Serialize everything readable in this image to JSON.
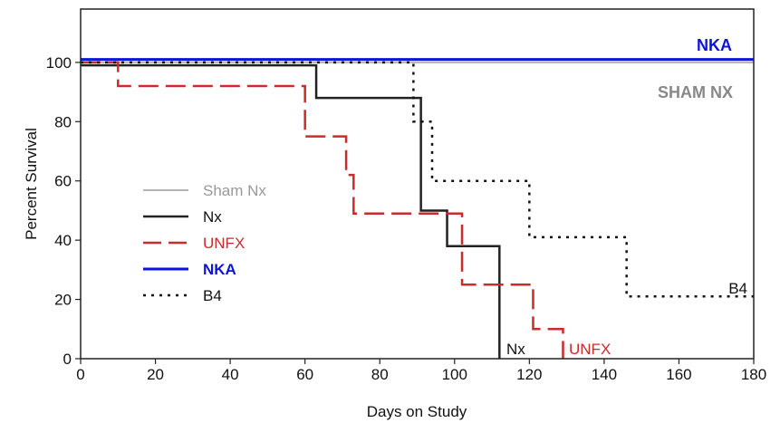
{
  "chart_data": {
    "type": "line",
    "subtype": "kaplan-meier step",
    "title": "",
    "xlabel": "Days on Study",
    "ylabel": "Percent Survival",
    "xlim": [
      0,
      180
    ],
    "ylim": [
      0,
      118
    ],
    "xticks": [
      0,
      20,
      40,
      60,
      80,
      100,
      120,
      140,
      160,
      180
    ],
    "yticks": [
      0,
      20,
      40,
      60,
      80,
      100
    ],
    "grid": false,
    "legend_position": "lower-left",
    "series": [
      {
        "name": "Sham Nx",
        "color": "#b3b3b3",
        "style": "solid",
        "width": 2,
        "x": [
          0,
          180
        ],
        "y": [
          100,
          100
        ]
      },
      {
        "name": "Nx",
        "color": "#222222",
        "style": "solid",
        "width": 2.5,
        "x": [
          0,
          63,
          91,
          98,
          112
        ],
        "y": [
          99,
          88,
          50,
          38,
          0
        ]
      },
      {
        "name": "UNFX",
        "color": "#cc2b2b",
        "style": "dashed",
        "width": 2.5,
        "x": [
          0,
          10,
          60,
          71,
          73,
          102,
          121,
          129
        ],
        "y": [
          100,
          92,
          75,
          62,
          49,
          25,
          10,
          0
        ]
      },
      {
        "name": "NKA",
        "color": "#0a14dc",
        "style": "solid",
        "width": 3,
        "x": [
          0,
          180
        ],
        "y": [
          101,
          101
        ]
      },
      {
        "name": "B4",
        "color": "#111111",
        "style": "dotted",
        "width": 2.5,
        "x": [
          0,
          89,
          94,
          120,
          146,
          180
        ],
        "y": [
          100,
          80,
          60,
          41,
          21,
          21
        ]
      }
    ],
    "annotations": [
      {
        "text": "NKA",
        "color": "#0a14dc",
        "bold": true
      },
      {
        "text": "SHAM NX",
        "color": "#888888",
        "bold": true
      },
      {
        "text": "B4",
        "color": "#111111",
        "bold": false
      },
      {
        "text": "Nx",
        "color": "#111111",
        "bold": false
      },
      {
        "text": "UNFX",
        "color": "#cc2b2b",
        "bold": false
      }
    ],
    "legend": [
      {
        "label": "Sham Nx",
        "text_color": "#999999",
        "bold": false
      },
      {
        "label": "Nx",
        "text_color": "#111111",
        "bold": false
      },
      {
        "label": "UNFX",
        "text_color": "#cc2b2b",
        "bold": false
      },
      {
        "label": "NKA",
        "text_color": "#0a14dc",
        "bold": true
      },
      {
        "label": "B4",
        "text_color": "#111111",
        "bold": false
      }
    ]
  }
}
